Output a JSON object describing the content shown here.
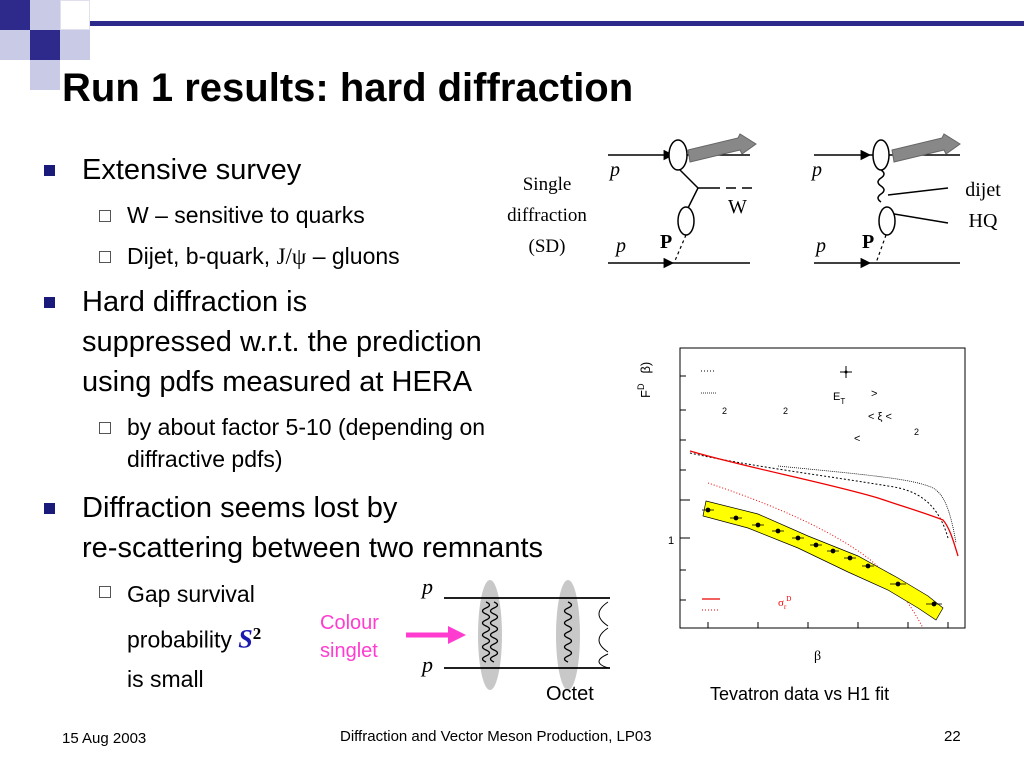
{
  "slide": {
    "title": "Run 1 results: hard diffraction",
    "bullets": {
      "b1": "Extensive survey",
      "b1_s1": "W – sensitive to quarks",
      "b1_s2_pre": "Dijet, b-quark, ",
      "b1_s2_jpsi": "J/ψ",
      "b1_s2_post": " – gluons",
      "b2_l1": "Hard diffraction is",
      "b2_l2": "suppressed w.r.t. the prediction",
      "b2_l3": "using pdfs measured at HERA",
      "b2_s1_l1": "by about factor 5-10 (depending on",
      "b2_s1_l2": "diffractive pdfs)",
      "b3_l1": "Diffraction seems lost by",
      "b3_l2": "re-scattering between two remnants",
      "b3_s1_l1": "Gap survival",
      "b3_s1_l2": "probability ",
      "b3_s1_S": "S",
      "b3_s1_sup": "2",
      "b3_s1_l3": "is small"
    },
    "diagram_sd": {
      "p_top": "p",
      "p_bottom": "p",
      "label_l1": "Single",
      "label_l2": "diffraction",
      "label_l3": "(SD)",
      "W": "W",
      "P": "P"
    },
    "diagram_dijet": {
      "p_top": "p",
      "p_bottom": "p",
      "P": "P",
      "label_l1": "dijet",
      "label_l2": "HQ"
    },
    "gap_diagram": {
      "p_top": "p",
      "p_bottom": "p",
      "colour_l1": "Colour",
      "colour_l2": "singlet",
      "octet": "Octet"
    },
    "plot": {
      "y_label": "F",
      "y_sup": "D",
      "y_paren": "β)",
      "tick_1": "1",
      "legend_2a": "2",
      "legend_2b": "2",
      "legend_ET": "E",
      "legend_ET_sub": "T",
      "legend_gt": ">",
      "legend_xi": "< ξ <",
      "legend_lt": "<",
      "legend_2c": "2",
      "sigma": "σ",
      "sigma_sub": "r",
      "sigma_sup": "D",
      "x_label": "β",
      "caption": "Tevatron data vs H1 fit"
    },
    "footer": {
      "date": "15 Aug 2003",
      "center": "Diffraction and Vector Meson Production, LP03",
      "page": "22"
    }
  }
}
